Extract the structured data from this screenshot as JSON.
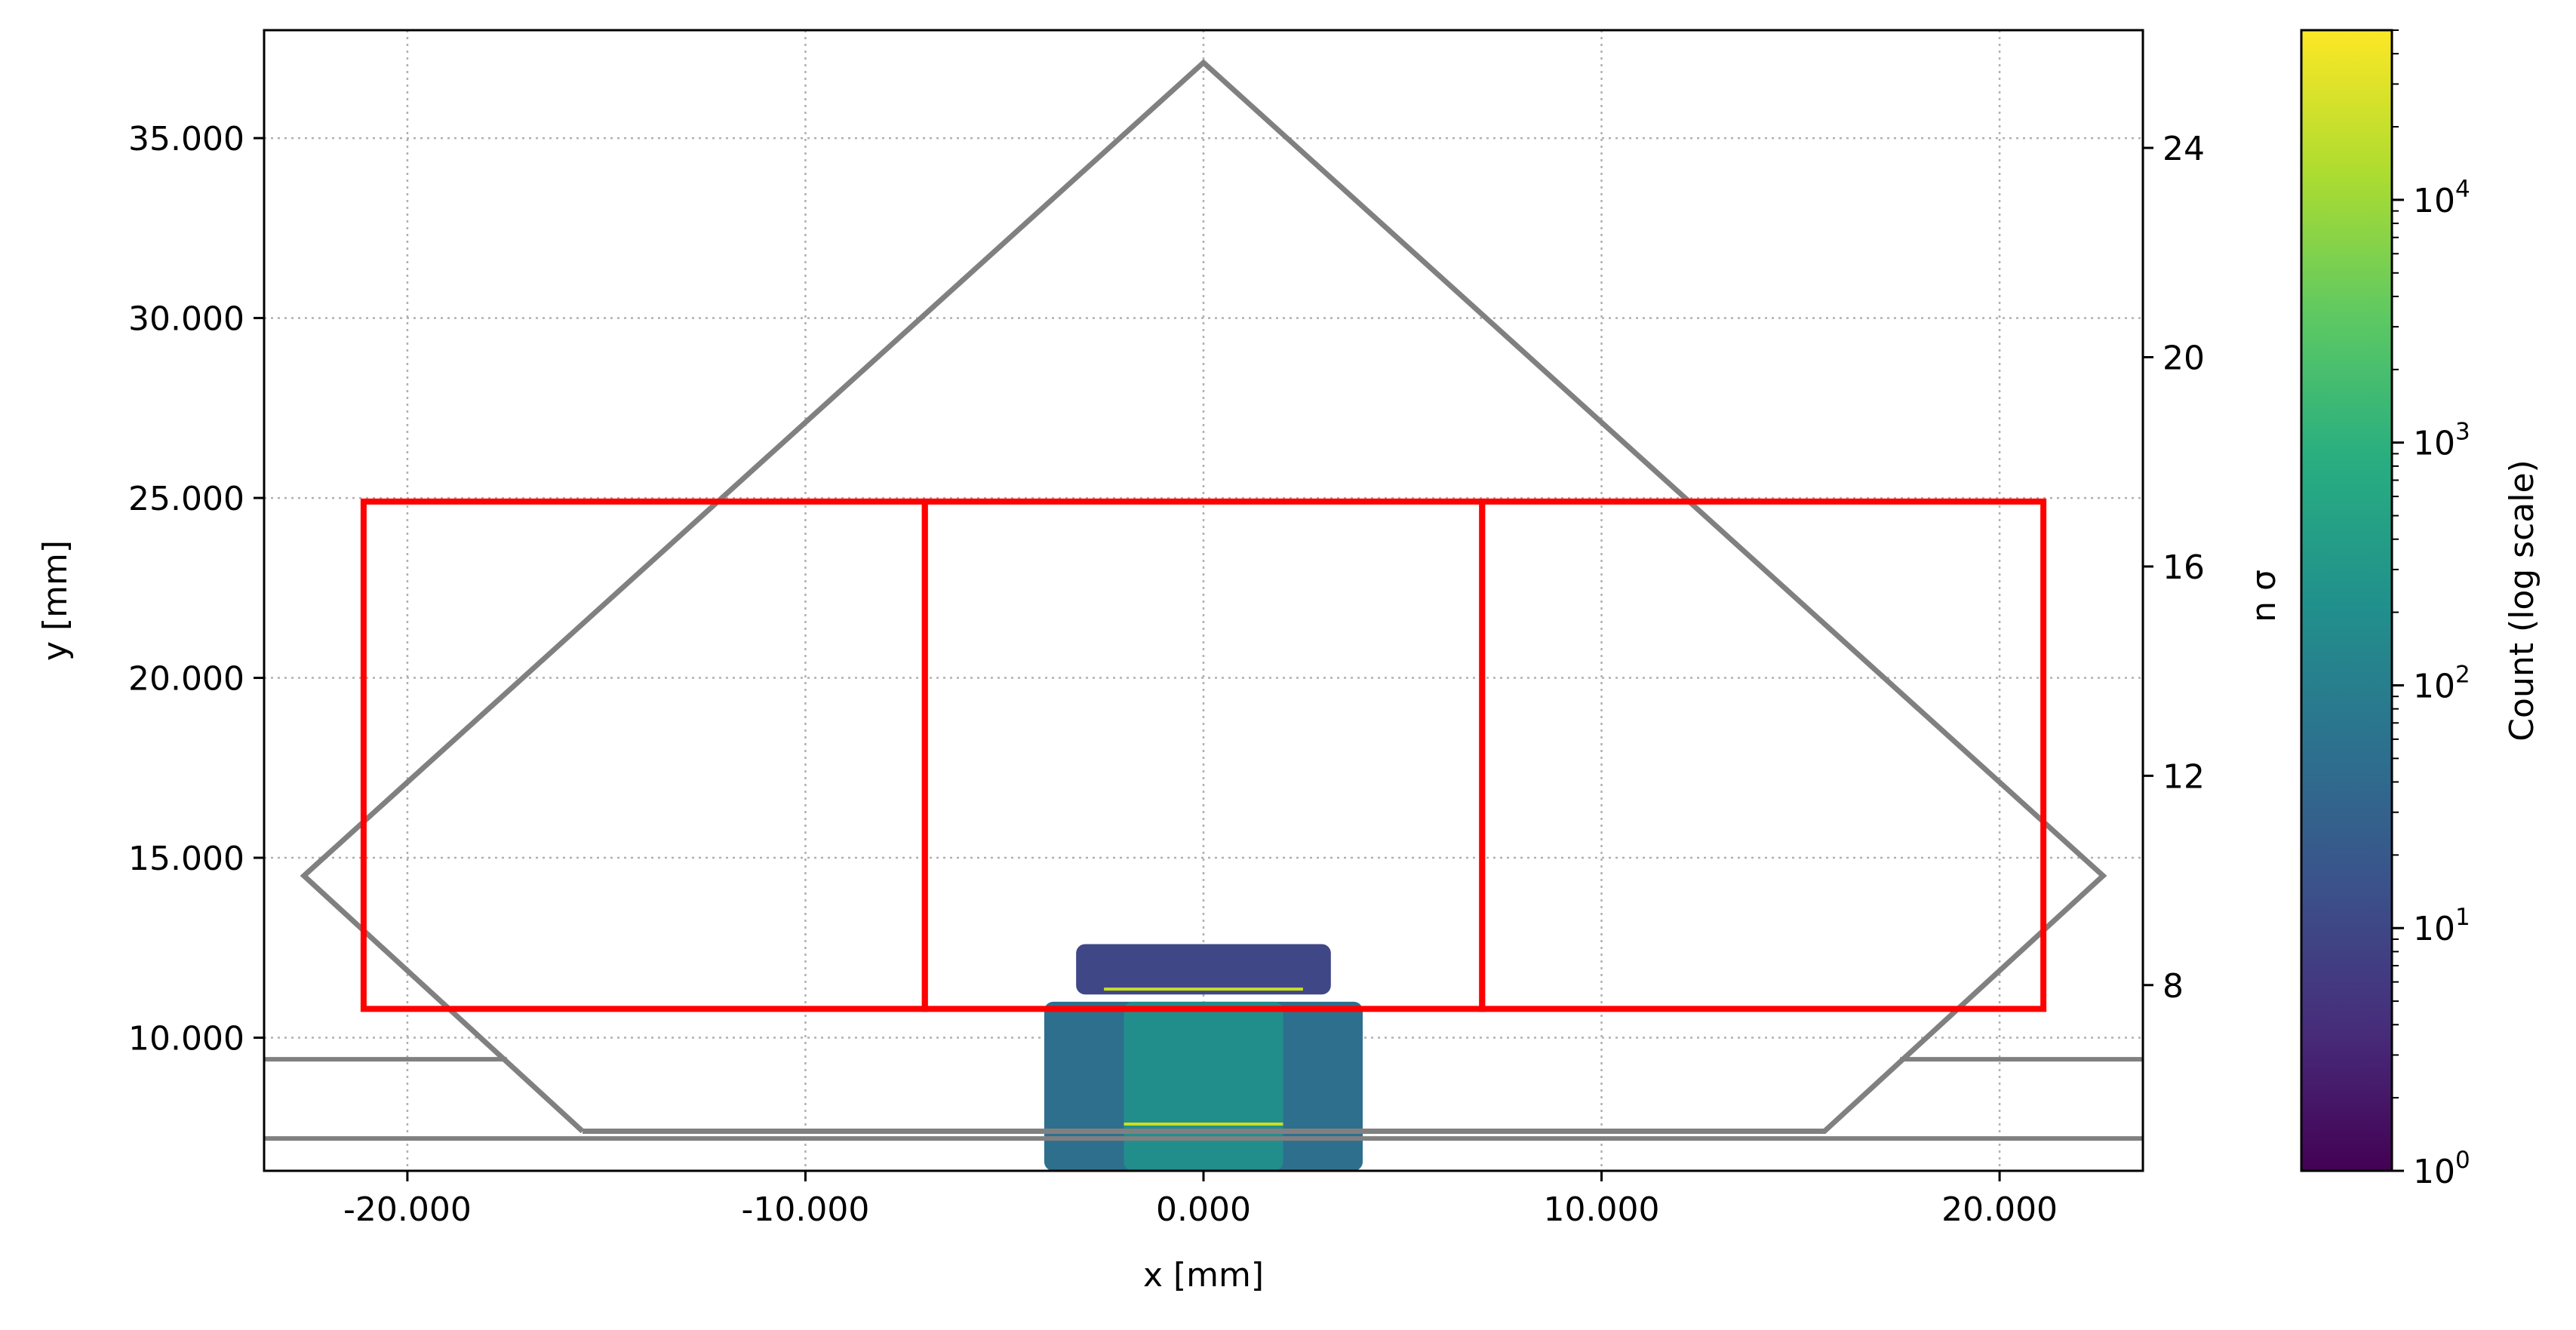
{
  "chart_data": {
    "type": "heatmap",
    "xlabel": "x [mm]",
    "ylabel": "y [mm]",
    "y2label": "n σ",
    "colorbar_label": "Count (log scale)",
    "xlim": [
      -23.6,
      23.6
    ],
    "ylim": [
      6.3,
      38.0
    ],
    "y2lim": [
      4.45,
      26.25
    ],
    "colorbar_range": [
      1,
      50000
    ],
    "colorbar_scale": "log",
    "colormap": "viridis",
    "grid": true,
    "x_ticks": [
      {
        "value": -20,
        "label": "-20.000"
      },
      {
        "value": -10,
        "label": "-10.000"
      },
      {
        "value": 0,
        "label": "0.000"
      },
      {
        "value": 10,
        "label": "10.000"
      },
      {
        "value": 20,
        "label": "20.000"
      }
    ],
    "y_ticks": [
      {
        "value": 10,
        "label": "10.000"
      },
      {
        "value": 15,
        "label": "15.000"
      },
      {
        "value": 20,
        "label": "20.000"
      },
      {
        "value": 25,
        "label": "25.000"
      },
      {
        "value": 30,
        "label": "30.000"
      },
      {
        "value": 35,
        "label": "35.000"
      }
    ],
    "y2_ticks": [
      {
        "value": 8,
        "label": "8"
      },
      {
        "value": 12,
        "label": "12"
      },
      {
        "value": 16,
        "label": "16"
      },
      {
        "value": 20,
        "label": "20"
      },
      {
        "value": 24,
        "label": "24"
      }
    ],
    "colorbar_ticks": [
      {
        "exp": 0,
        "base": "10",
        "sup": "0"
      },
      {
        "exp": 1,
        "base": "10",
        "sup": "1"
      },
      {
        "exp": 2,
        "base": "10",
        "sup": "2"
      },
      {
        "exp": 3,
        "base": "10",
        "sup": "3"
      },
      {
        "exp": 4,
        "base": "10",
        "sup": "4"
      }
    ],
    "outline": {
      "color": "#808080",
      "points": [
        [
          -15.6,
          7.4
        ],
        [
          -22.6,
          14.5
        ],
        [
          0,
          37.1
        ],
        [
          22.6,
          14.5
        ],
        [
          15.6,
          7.4
        ],
        [
          -15.6,
          7.4
        ]
      ]
    },
    "horizontal_lines": [
      {
        "x": [
          -23.6,
          -17.5
        ],
        "y": 9.4
      },
      {
        "x": [
          17.5,
          23.6
        ],
        "y": 9.4
      },
      {
        "x": [
          -23.6,
          23.6
        ],
        "y": 7.2
      }
    ],
    "detector_boxes": {
      "color": "#ff0000",
      "y_range": [
        10.8,
        24.9
      ],
      "boxes": [
        {
          "x_range": [
            -21.1,
            -7.0
          ]
        },
        {
          "x_range": [
            -7.0,
            7.0
          ]
        },
        {
          "x_range": [
            7.0,
            21.1
          ]
        }
      ]
    },
    "beam_distribution": {
      "bands": [
        {
          "x_range": [
            -3.2,
            3.2
          ],
          "y_range": [
            11.2,
            12.6
          ],
          "level": 1.0
        },
        {
          "x_range": [
            -4.0,
            4.0
          ],
          "y_range": [
            6.3,
            11.0
          ],
          "level": 1.7
        },
        {
          "x_range": [
            -2.0,
            2.0
          ],
          "y_range": [
            6.3,
            11.0
          ],
          "level": 2.3
        }
      ],
      "peak_lines": [
        {
          "x_range": [
            -2.5,
            2.5
          ],
          "y": 11.35
        },
        {
          "x_range": [
            -2.0,
            2.0
          ],
          "y": 7.6
        }
      ]
    }
  }
}
